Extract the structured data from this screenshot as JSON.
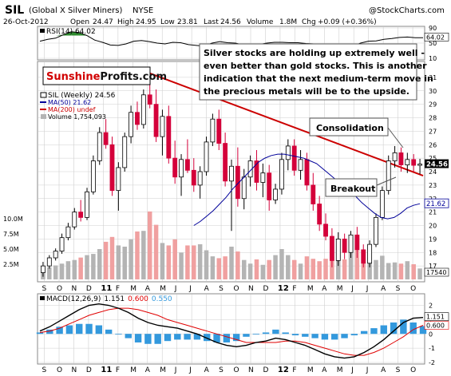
{
  "header": {
    "symbol": "SIL",
    "name": "(Global X Silver Miners)",
    "exchange": "NYSE",
    "credit": "@StockCharts.com",
    "date": "26-Oct-2012",
    "open_label": "Open",
    "open": "24.47",
    "high_label": "High",
    "high": "24.95",
    "low_label": "Low",
    "low": "23.81",
    "last_label": "Last",
    "last": "24.56",
    "volume_label": "Volume",
    "volume": "1.8M",
    "chg_label": "Chg",
    "chg": "+0.09 (+0.36%)"
  },
  "brand": {
    "part1": "Sunshine",
    "part2": "Profits.com"
  },
  "annotation": "Silver stocks are holding up extremely well - even better than gold stocks. This is another indication that the next medium-term move in the precious metals will be to the upside.",
  "callouts": {
    "consolidation": "Consolidation",
    "breakout": "Breakout"
  },
  "colors": {
    "up": "#000000",
    "down": "#d4003a",
    "ma50": "#000099",
    "ma200": "#cc0000",
    "trendline": "#cc0000",
    "volume": "#b4b4b4",
    "volume_down": "#f0a0a0",
    "rsi": "#000000",
    "rsi_fill": "#2e8b2e",
    "macd": "#000000",
    "signal": "#e00000",
    "histogram": "#3399dd",
    "grid": "#cfcfcf"
  },
  "chart_data": [
    {
      "type": "line",
      "title": "RSI(14) 64.02",
      "ylim": [
        10,
        90
      ],
      "ticks": [
        10,
        50,
        90
      ],
      "last_label": "64.02",
      "points": [
        55,
        60,
        63,
        72,
        80,
        78,
        70,
        58,
        52,
        45,
        44,
        48,
        55,
        57,
        54,
        50,
        48,
        52,
        51,
        46,
        44,
        42,
        50,
        54,
        51,
        50,
        45,
        46,
        46,
        50,
        52,
        52,
        51,
        51,
        49,
        48,
        46,
        40,
        36,
        32,
        41,
        50,
        55,
        56,
        60,
        62,
        65,
        66,
        64,
        64
      ]
    },
    {
      "type": "candlestick",
      "title": "SIL (Weekly) 24.56",
      "legend": [
        "SIL (Weekly) 24.56",
        "MA(50) 21.62",
        "MA(200) undef",
        "Volume 1,754,093"
      ],
      "ylim": [
        16,
        32
      ],
      "ticks": [
        17,
        18,
        19,
        20,
        21,
        22,
        23,
        24,
        25,
        26,
        27,
        28,
        29,
        30,
        31
      ],
      "x_labels": [
        "S",
        "O",
        "N",
        "D",
        "11",
        "F",
        "M",
        "A",
        "M",
        "J",
        "J",
        "A",
        "S",
        "O",
        "N",
        "D",
        "12",
        "F",
        "M",
        "A",
        "M",
        "J",
        "J",
        "A",
        "S",
        "O"
      ],
      "last_label": "24.56",
      "ma50_label": "21.62",
      "candles": [
        [
          16.5,
          17.3,
          16.2,
          17.0
        ],
        [
          17.0,
          17.8,
          16.8,
          17.6
        ],
        [
          17.6,
          18.3,
          17.4,
          18.1
        ],
        [
          18.1,
          19.4,
          17.9,
          19.1
        ],
        [
          19.1,
          20.2,
          18.9,
          19.9
        ],
        [
          19.9,
          21.3,
          19.7,
          21.0
        ],
        [
          21.0,
          21.9,
          20.3,
          20.6
        ],
        [
          20.6,
          22.8,
          20.4,
          22.5
        ],
        [
          22.5,
          25.2,
          22.3,
          24.8
        ],
        [
          24.8,
          27.3,
          24.5,
          26.9
        ],
        [
          26.9,
          27.9,
          25.7,
          26.0
        ],
        [
          26.0,
          26.6,
          22.2,
          22.6
        ],
        [
          22.6,
          24.7,
          21.1,
          24.3
        ],
        [
          24.3,
          26.9,
          24.0,
          26.6
        ],
        [
          26.6,
          28.9,
          26.1,
          28.4
        ],
        [
          28.4,
          29.2,
          27.1,
          27.5
        ],
        [
          27.5,
          30.1,
          27.2,
          29.7
        ],
        [
          29.7,
          31.2,
          28.7,
          29.0
        ],
        [
          29.0,
          30.1,
          26.2,
          26.6
        ],
        [
          26.6,
          28.6,
          25.2,
          28.1
        ],
        [
          28.1,
          28.9,
          24.6,
          25.0
        ],
        [
          25.0,
          26.3,
          23.1,
          23.6
        ],
        [
          23.6,
          25.3,
          22.2,
          24.9
        ],
        [
          24.9,
          26.4,
          23.9,
          24.1
        ],
        [
          24.1,
          25.0,
          22.5,
          23.0
        ],
        [
          23.0,
          24.4,
          22.0,
          24.0
        ],
        [
          24.0,
          26.6,
          23.7,
          26.2
        ],
        [
          26.2,
          28.3,
          25.9,
          27.9
        ],
        [
          27.9,
          28.6,
          25.6,
          26.1
        ],
        [
          26.1,
          26.9,
          22.9,
          23.3
        ],
        [
          23.3,
          24.9,
          19.6,
          24.4
        ],
        [
          24.4,
          25.8,
          21.4,
          22.0
        ],
        [
          22.0,
          24.2,
          21.2,
          23.6
        ],
        [
          23.6,
          25.2,
          22.9,
          24.8
        ],
        [
          24.8,
          25.6,
          22.6,
          23.2
        ],
        [
          23.2,
          24.6,
          22.1,
          23.9
        ],
        [
          23.9,
          24.5,
          21.1,
          21.9
        ],
        [
          21.9,
          23.1,
          21.6,
          22.7
        ],
        [
          22.7,
          25.4,
          22.3,
          24.9
        ],
        [
          24.9,
          26.4,
          24.1,
          25.9
        ],
        [
          25.9,
          26.4,
          23.7,
          24.1
        ],
        [
          24.1,
          25.6,
          23.4,
          24.9
        ],
        [
          24.9,
          25.4,
          22.6,
          23.0
        ],
        [
          23.0,
          23.9,
          21.1,
          21.6
        ],
        [
          21.6,
          22.2,
          19.6,
          20.1
        ],
        [
          20.1,
          20.9,
          18.9,
          19.2
        ],
        [
          19.2,
          19.8,
          16.9,
          17.4
        ],
        [
          17.4,
          19.5,
          17.0,
          19.0
        ],
        [
          19.0,
          19.4,
          17.5,
          18.0
        ],
        [
          18.0,
          19.6,
          17.6,
          19.3
        ],
        [
          19.3,
          19.9,
          17.6,
          18.2
        ],
        [
          18.2,
          18.6,
          16.9,
          17.2
        ],
        [
          17.2,
          18.9,
          16.9,
          18.6
        ],
        [
          18.6,
          20.9,
          18.4,
          20.6
        ],
        [
          20.6,
          22.9,
          20.4,
          22.6
        ],
        [
          22.6,
          25.2,
          22.3,
          24.8
        ],
        [
          24.8,
          25.9,
          24.3,
          25.4
        ],
        [
          25.4,
          25.8,
          24.0,
          24.5
        ],
        [
          24.5,
          25.4,
          23.9,
          24.9
        ],
        [
          24.9,
          25.3,
          24.0,
          24.47
        ],
        [
          24.47,
          24.95,
          23.81,
          24.56
        ]
      ],
      "ma50": [
        20.0,
        20.3,
        20.7,
        21.1,
        21.6,
        22.1,
        22.7,
        23.2,
        23.7,
        24.2,
        24.7,
        25.0,
        25.2,
        25.3,
        25.3,
        25.2,
        25.1,
        25.0,
        24.8,
        24.6,
        24.2,
        23.8,
        23.4,
        23.0,
        22.6,
        22.2,
        21.7,
        21.3,
        20.9,
        20.6,
        20.5,
        20.6,
        20.9,
        21.3,
        21.5,
        21.62
      ]
    },
    {
      "type": "bar",
      "title": "Volume",
      "ylim": [
        0,
        12.5
      ],
      "ticks_labels": [
        "2.5M",
        "5.0M",
        "7.5M",
        "10.0M"
      ],
      "tick_values": [
        2.5,
        5.0,
        7.5,
        10.0
      ],
      "last_label": "17540",
      "values": [
        1.8,
        2.0,
        2.3,
        2.6,
        3.0,
        3.2,
        3.6,
        4.0,
        4.2,
        5.0,
        6.2,
        7.0,
        5.6,
        5.4,
        6.6,
        7.9,
        8.0,
        11.2,
        9.0,
        6.0,
        5.6,
        6.6,
        4.4,
        5.6,
        5.6,
        5.8,
        4.8,
        3.8,
        3.5,
        3.8,
        5.4,
        4.6,
        3.2,
        2.6,
        3.3,
        2.4,
        3.2,
        4.0,
        5.0,
        4.0,
        3.2,
        2.6,
        3.8,
        3.4,
        3.0,
        3.4,
        3.7,
        4.0,
        3.3,
        4.4,
        4.8,
        3.4,
        3.6,
        3.2,
        3.9,
        2.7,
        2.8,
        2.6,
        3.0,
        2.5,
        1.8
      ],
      "down": [
        false,
        false,
        false,
        false,
        false,
        false,
        true,
        false,
        false,
        false,
        true,
        true,
        false,
        false,
        false,
        true,
        false,
        true,
        true,
        false,
        true,
        true,
        false,
        true,
        true,
        false,
        false,
        false,
        true,
        true,
        false,
        true,
        false,
        false,
        true,
        false,
        true,
        false,
        false,
        false,
        true,
        false,
        true,
        true,
        true,
        true,
        true,
        false,
        true,
        false,
        true,
        true,
        false,
        false,
        false,
        false,
        false,
        true,
        false,
        true,
        false
      ]
    },
    {
      "type": "line",
      "title": "MACD(12,26,9)",
      "macd_value": "1.151",
      "signal_value": "0.600",
      "hist_value": "0.550",
      "ylim": [
        -2,
        2.7
      ],
      "ticks": [
        -2,
        -1,
        0,
        1,
        2
      ],
      "last_labels": [
        "1.151",
        "0.600"
      ],
      "x_labels": [
        "S",
        "O",
        "N",
        "D",
        "11",
        "F",
        "M",
        "A",
        "M",
        "J",
        "J",
        "A",
        "S",
        "O",
        "N",
        "D",
        "12",
        "F",
        "M",
        "A",
        "M",
        "J",
        "J",
        "A",
        "S",
        "O"
      ],
      "macd": [
        0.2,
        0.5,
        0.9,
        1.3,
        1.7,
        2.0,
        2.1,
        2.0,
        1.8,
        1.5,
        1.1,
        0.8,
        0.6,
        0.5,
        0.4,
        0.2,
        0.0,
        -0.3,
        -0.6,
        -0.8,
        -0.9,
        -0.8,
        -0.6,
        -0.5,
        -0.3,
        -0.4,
        -0.6,
        -0.8,
        -1.1,
        -1.4,
        -1.6,
        -1.7,
        -1.6,
        -1.3,
        -0.9,
        -0.4,
        0.2,
        0.8,
        1.1,
        1.151
      ],
      "signal": [
        0.1,
        0.2,
        0.4,
        0.7,
        1.0,
        1.3,
        1.5,
        1.7,
        1.8,
        1.8,
        1.7,
        1.5,
        1.3,
        1.0,
        0.8,
        0.6,
        0.4,
        0.2,
        0.0,
        -0.2,
        -0.4,
        -0.6,
        -0.6,
        -0.6,
        -0.6,
        -0.5,
        -0.5,
        -0.6,
        -0.8,
        -1.0,
        -1.2,
        -1.4,
        -1.5,
        -1.5,
        -1.3,
        -1.0,
        -0.6,
        -0.2,
        0.3,
        0.6
      ]
    }
  ]
}
